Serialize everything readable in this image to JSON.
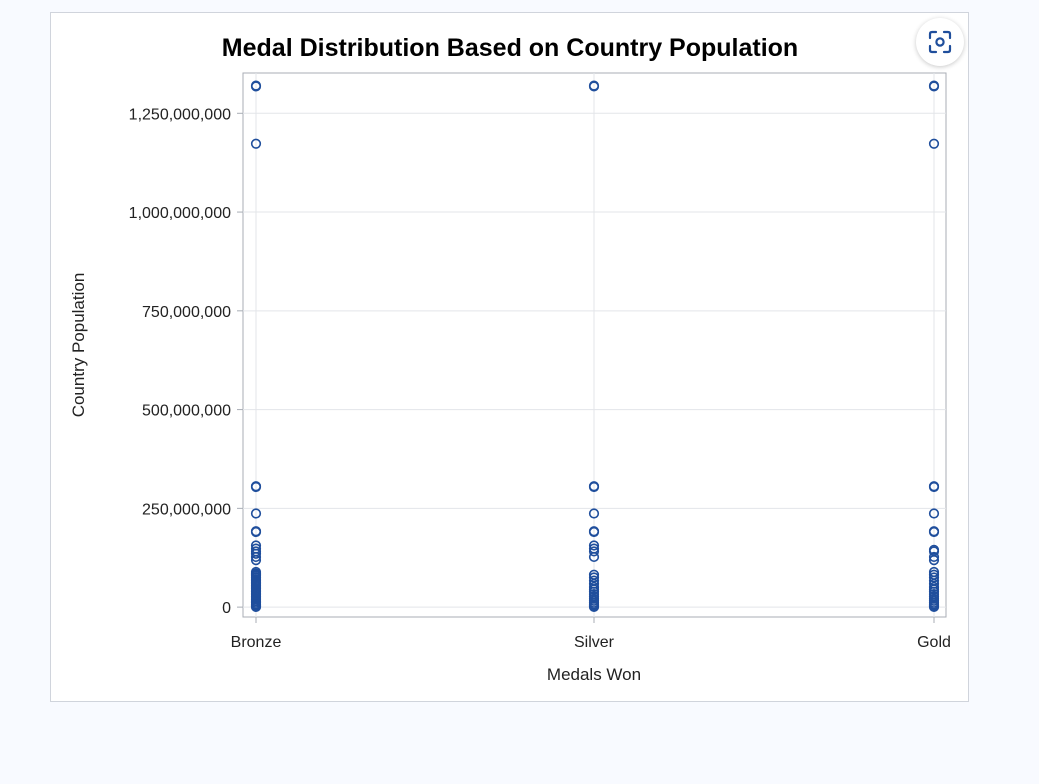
{
  "chart_data": {
    "type": "scatter",
    "title": "Medal Distribution Based on Country Population",
    "xlabel": "Medals Won",
    "ylabel": "Country Population",
    "categories": [
      "Bronze",
      "Silver",
      "Gold"
    ],
    "ylim": [
      -25000000,
      1352000000
    ],
    "yticks": [
      0,
      250000000,
      500000000,
      750000000,
      1000000000,
      1250000000
    ],
    "ytick_labels": [
      "0",
      "250,000,000",
      "500,000,000",
      "750,000,000",
      "1,000,000,000",
      "1,250,000,000"
    ],
    "grid": true,
    "legend": "none",
    "marker_color": "#1f4e9c",
    "series": [
      {
        "category": "Bronze",
        "values": [
          1320000000,
          1318000000,
          1173000000,
          306000000,
          304000000,
          237000000,
          192000000,
          190000000,
          156000000,
          148000000,
          141000000,
          135000000,
          127000000,
          119000000,
          89000000,
          85000000,
          82000000,
          79000000,
          75000000,
          71000000,
          67000000,
          63000000,
          59000000,
          55000000,
          51000000,
          47000000,
          43000000,
          39000000,
          35000000,
          31000000,
          27000000,
          23000000,
          19000000,
          15000000,
          11000000,
          7000000,
          4000000,
          2000000,
          500000
        ]
      },
      {
        "category": "Silver",
        "values": [
          1320000000,
          1318000000,
          306000000,
          304000000,
          237000000,
          192000000,
          190000000,
          156000000,
          148000000,
          141000000,
          127000000,
          82000000,
          75000000,
          67000000,
          59000000,
          51000000,
          45000000,
          39000000,
          33000000,
          27000000,
          21000000,
          16000000,
          11000000,
          7000000,
          4000000,
          2000000,
          500000
        ]
      },
      {
        "category": "Gold",
        "values": [
          1320000000,
          1318000000,
          1173000000,
          306000000,
          304000000,
          237000000,
          192000000,
          190000000,
          145000000,
          141000000,
          127000000,
          119000000,
          89000000,
          82000000,
          75000000,
          67000000,
          59000000,
          51000000,
          45000000,
          39000000,
          33000000,
          27000000,
          21000000,
          16000000,
          11000000,
          7000000,
          4000000,
          2000000,
          500000
        ]
      }
    ]
  },
  "controls": {
    "expand_icon": "focus-frame-icon"
  }
}
